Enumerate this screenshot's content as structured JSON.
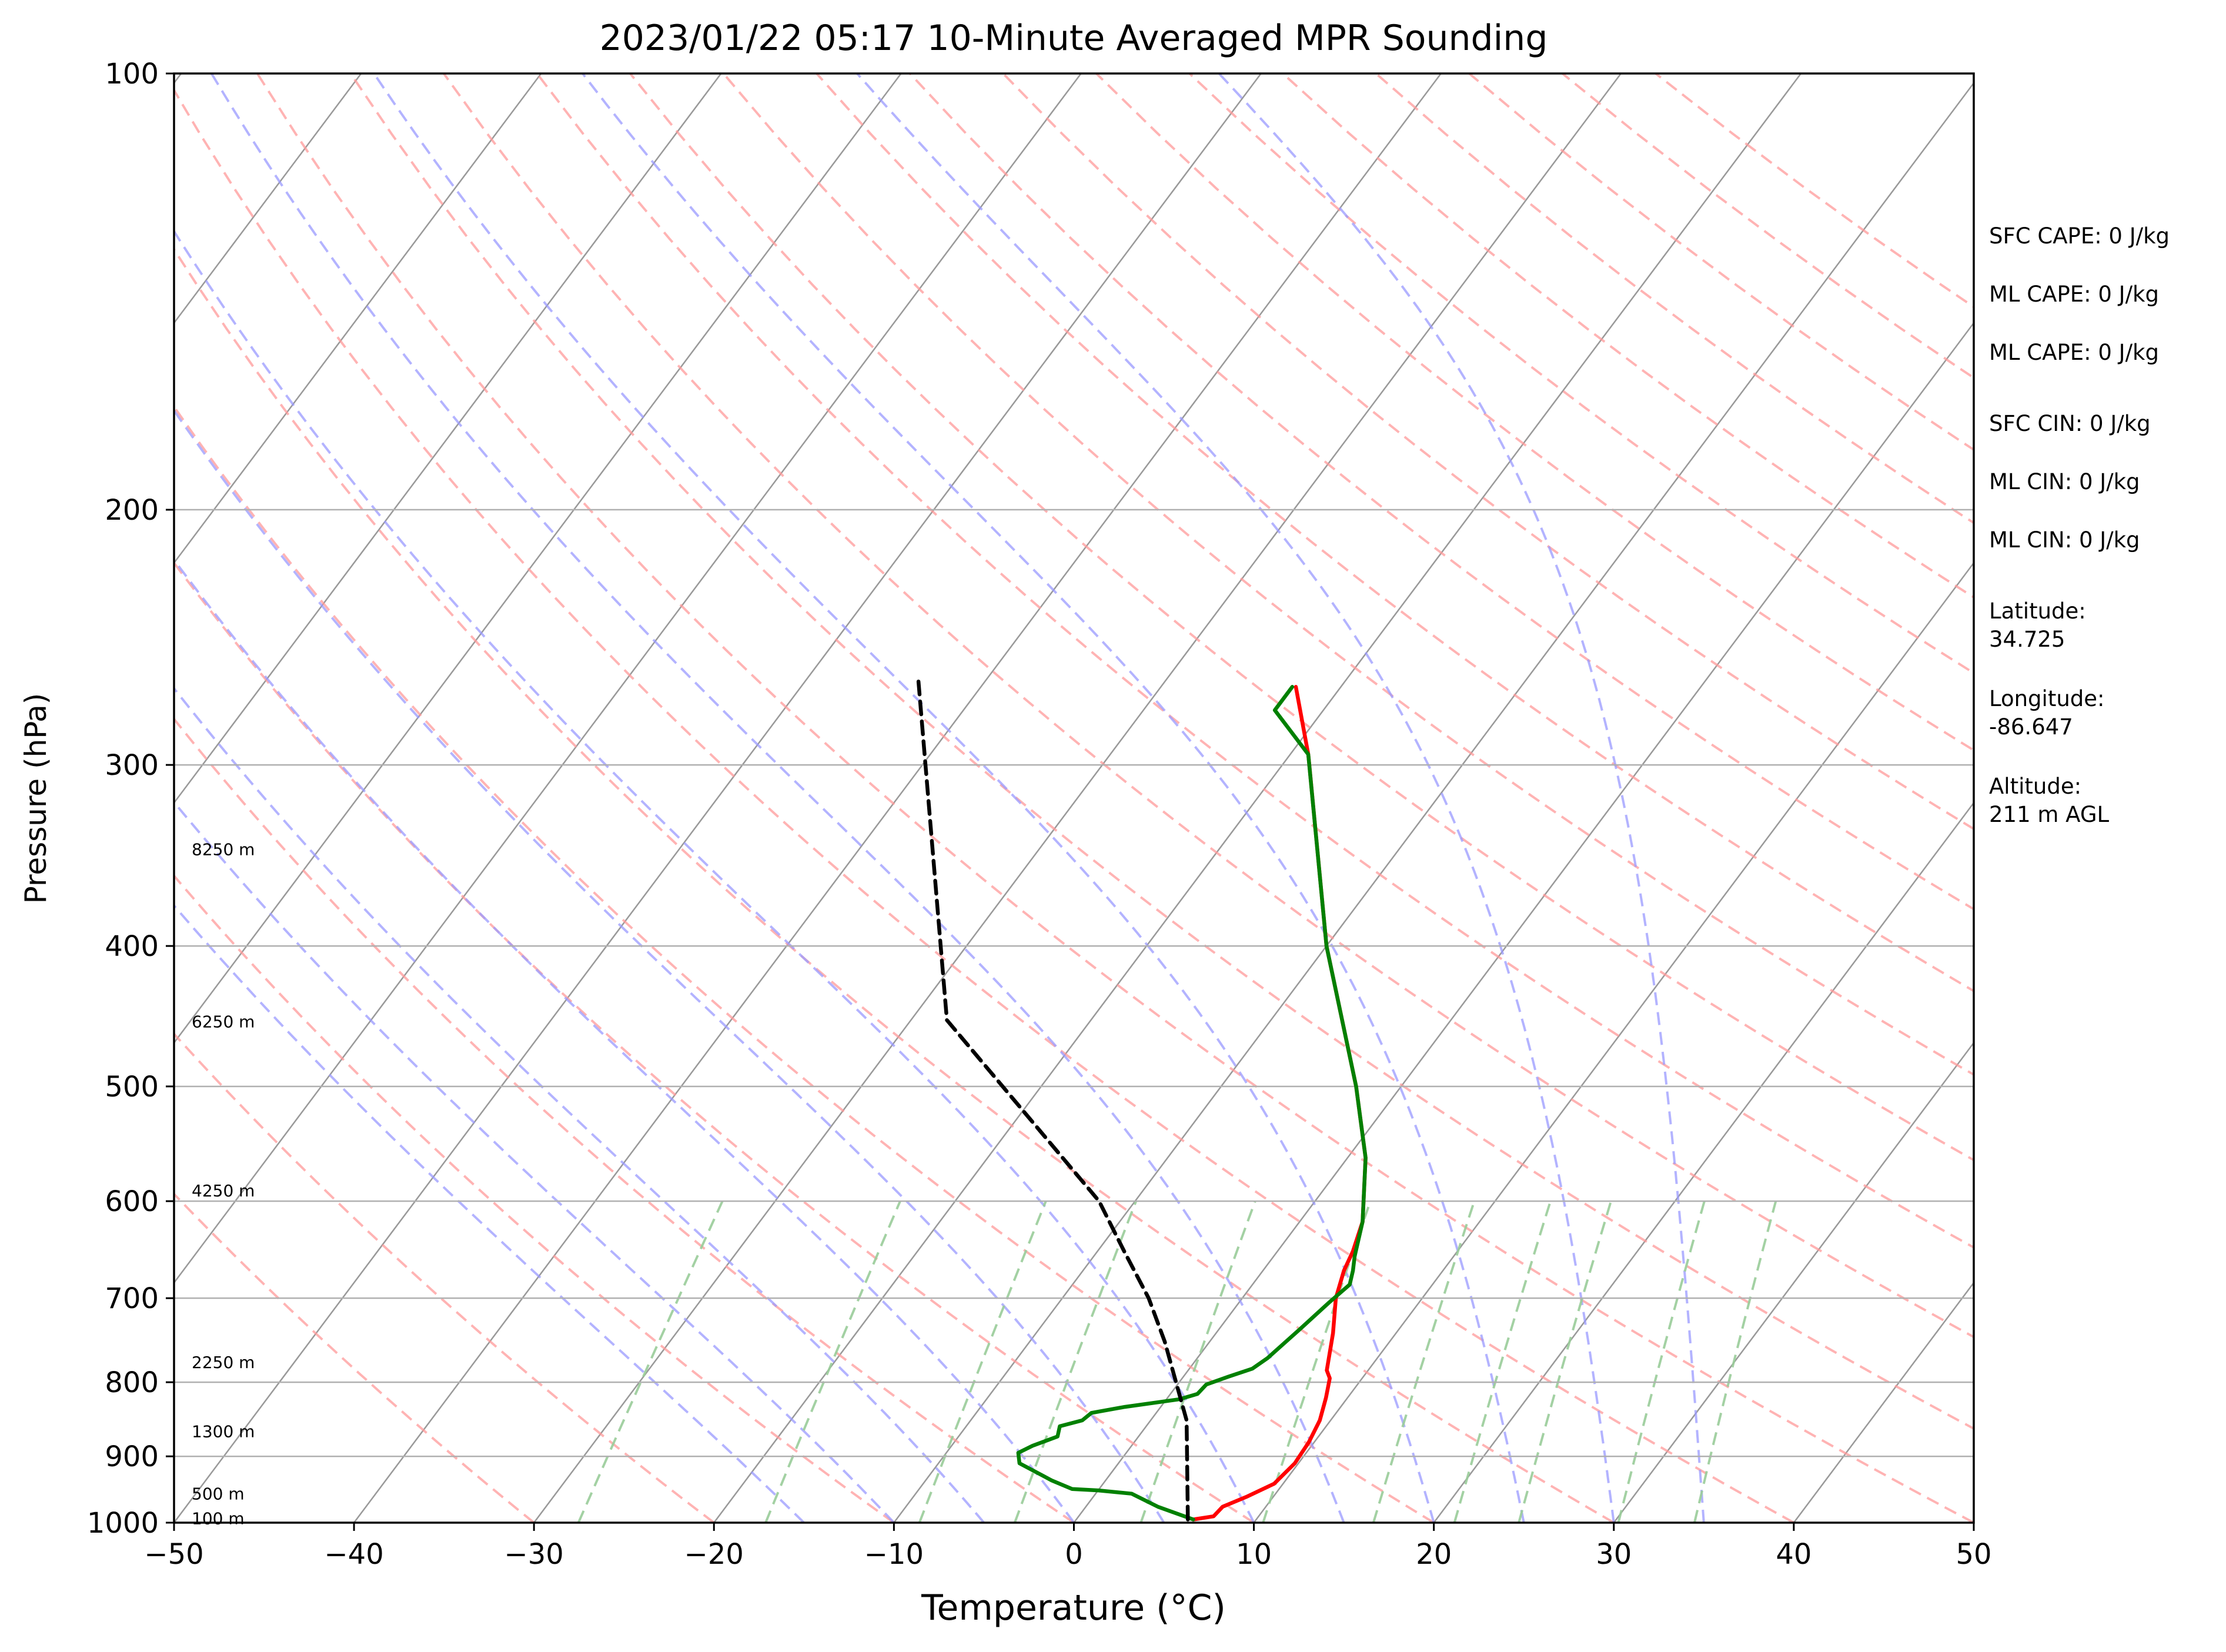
{
  "chart_data": {
    "type": "skew-t",
    "title": "2023/01/22 05:17 10-Minute Averaged MPR Sounding",
    "xlabel": "Temperature (°C)",
    "ylabel": "Pressure (hPa)",
    "xlim": [
      -50,
      50
    ],
    "ylim": [
      1000,
      100
    ],
    "y_scale": "log",
    "x_ticks": [
      -50,
      -40,
      -30,
      -20,
      -10,
      0,
      10,
      20,
      30,
      40,
      50
    ],
    "x_tick_labels": [
      "−50",
      "−40",
      "−30",
      "−20",
      "−10",
      "0",
      "10",
      "20",
      "30",
      "40",
      "50"
    ],
    "y_ticks": [
      1000,
      900,
      800,
      700,
      600,
      500,
      400,
      300,
      200,
      100
    ],
    "y_tick_labels": [
      "1000",
      "900",
      "800",
      "700",
      "600",
      "500",
      "400",
      "300",
      "200",
      "100"
    ],
    "grid": true,
    "height_labels": [
      {
        "text": "8250 m",
        "p": 343
      },
      {
        "text": "6250 m",
        "p": 451
      },
      {
        "text": "4250 m",
        "p": 590
      },
      {
        "text": "2250 m",
        "p": 775
      },
      {
        "text": "1300 m",
        "p": 865
      },
      {
        "text": "500 m",
        "p": 955
      },
      {
        "text": "100 m",
        "p": 993
      }
    ],
    "series": [
      {
        "color": "#ff0000",
        "points": [
          [
            6.5,
            995
          ],
          [
            7.5,
            990
          ],
          [
            7.6,
            975
          ],
          [
            8.5,
            960
          ],
          [
            9.5,
            940
          ],
          [
            9.8,
            910
          ],
          [
            9.7,
            880
          ],
          [
            9.4,
            850
          ],
          [
            8.8,
            820
          ],
          [
            8.2,
            795
          ],
          [
            7.7,
            785
          ],
          [
            6.5,
            740
          ],
          [
            5.2,
            700
          ],
          [
            4.5,
            670
          ],
          [
            4.2,
            650
          ],
          [
            3.5,
            620
          ],
          [
            1.0,
            560
          ],
          [
            -2.5,
            500
          ],
          [
            -10.0,
            400
          ],
          [
            -18.5,
            300
          ],
          [
            -19.0,
            295
          ],
          [
            -22.5,
            265
          ]
        ]
      },
      {
        "color": "#008000",
        "points": [
          [
            6.5,
            995
          ],
          [
            4.0,
            975
          ],
          [
            2.0,
            955
          ],
          [
            0.0,
            950
          ],
          [
            -1.5,
            948
          ],
          [
            -3.0,
            935
          ],
          [
            -5.5,
            910
          ],
          [
            -6.0,
            895
          ],
          [
            -5.5,
            885
          ],
          [
            -4.5,
            872
          ],
          [
            -4.8,
            858
          ],
          [
            -3.8,
            850
          ],
          [
            -3.6,
            840
          ],
          [
            -2.0,
            832
          ],
          [
            0.7,
            822
          ],
          [
            1.5,
            815
          ],
          [
            1.6,
            803
          ],
          [
            2.5,
            793
          ],
          [
            3.5,
            783
          ],
          [
            3.9,
            770
          ],
          [
            4.5,
            735
          ],
          [
            5.0,
            705
          ],
          [
            5.4,
            685
          ],
          [
            5.0,
            670
          ],
          [
            4.5,
            655
          ],
          [
            3.5,
            620
          ],
          [
            1.0,
            560
          ],
          [
            -2.5,
            500
          ],
          [
            -10.0,
            400
          ],
          [
            -19.0,
            295
          ],
          [
            -22.7,
            275
          ],
          [
            -22.7,
            265
          ]
        ]
      },
      {
        "color": "#000000",
        "style": "dashed",
        "points": [
          [
            6.2,
            995
          ],
          [
            2.0,
            850
          ],
          [
            -2.5,
            750
          ],
          [
            -5.2,
            700
          ],
          [
            -8.5,
            650
          ],
          [
            -12.0,
            600
          ],
          [
            -28.0,
            450
          ],
          [
            -44.0,
            260
          ]
        ]
      }
    ]
  },
  "side_panel": {
    "sfc_cape": "SFC CAPE: 0 J/kg",
    "ml_cape_1": "ML CAPE: 0 J/kg",
    "ml_cape_2": "ML CAPE: 0 J/kg",
    "sfc_cin": "SFC CIN: 0 J/kg",
    "ml_cin_1": "ML CIN: 0 J/kg",
    "ml_cin_2": "ML CIN: 0 J/kg",
    "latitude": "Latitude:\n34.725",
    "longitude": "Longitude:\n-86.647",
    "altitude": "Altitude:\n211 m AGL"
  },
  "colors": {
    "temperature": "#ff0000",
    "dewpoint": "#008000",
    "parcel": "#000000",
    "dry_adiabats": "#ff9999",
    "moist_adiabats": "#9999ff",
    "mixing_ratio": "#99cc99",
    "isotherms": "#999999"
  }
}
